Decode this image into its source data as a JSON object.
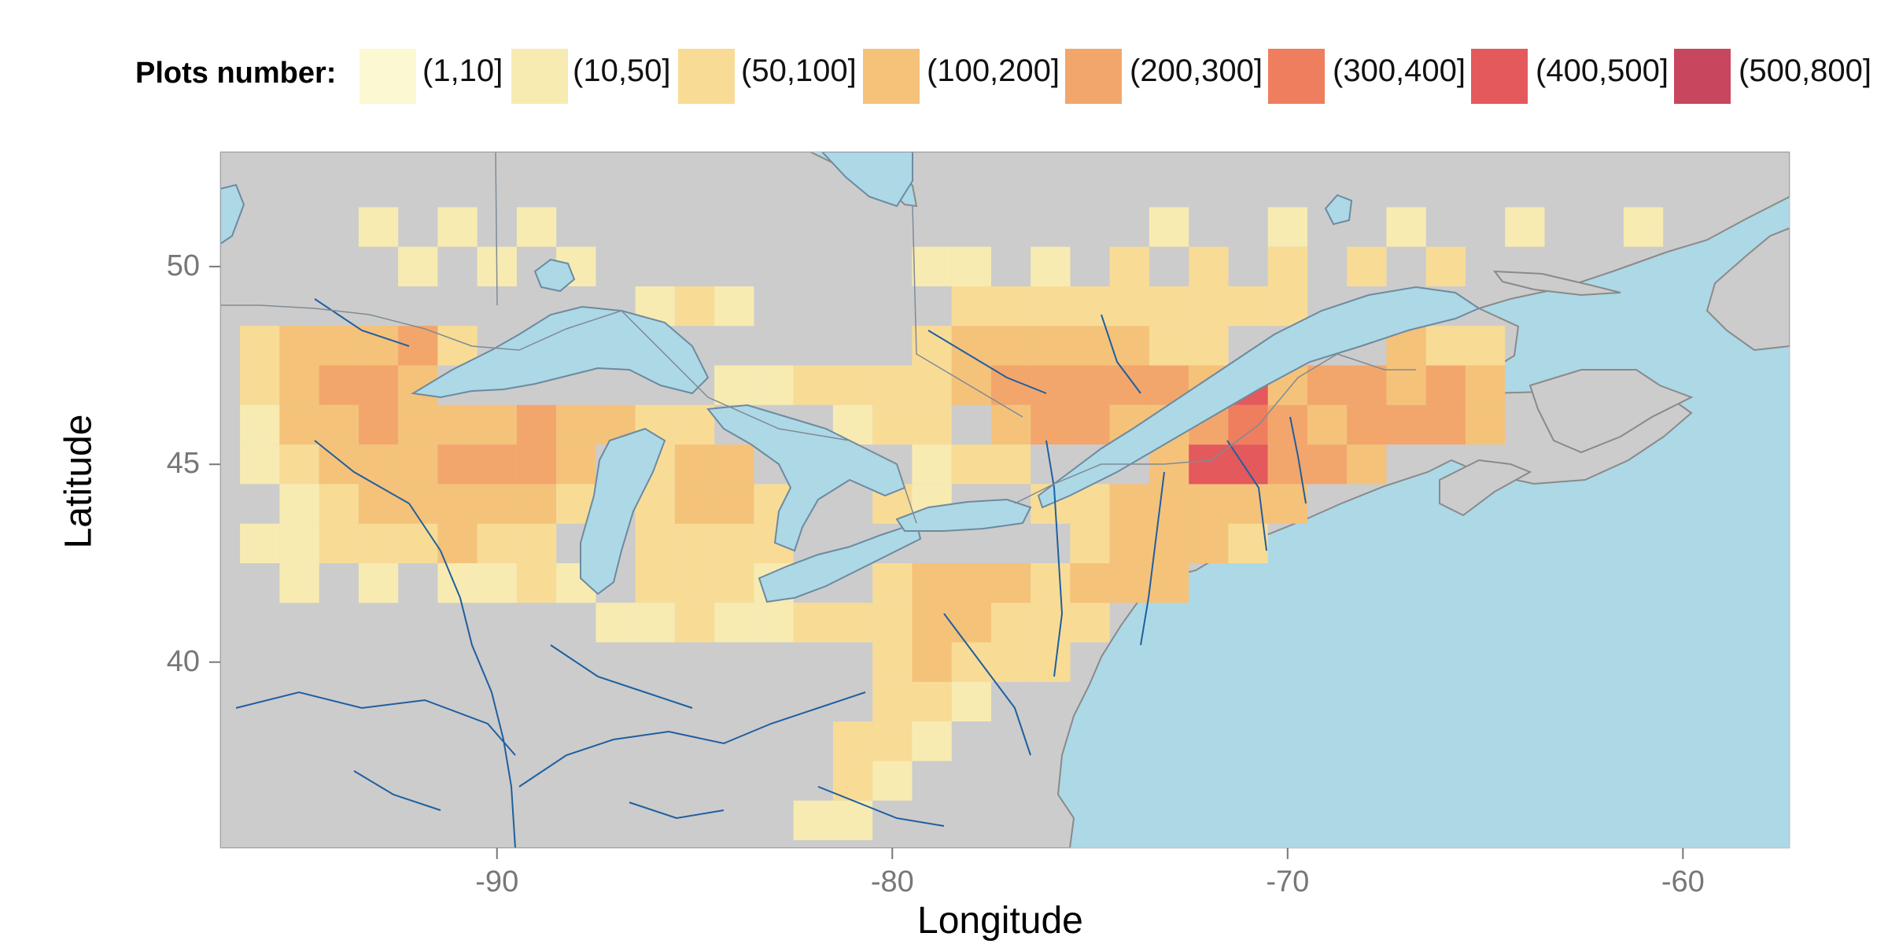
{
  "legend": {
    "title": "Plots number:",
    "items": [
      {
        "label": "(1,10]",
        "color": "#fbf8d2"
      },
      {
        "label": "(10,50]",
        "color": "#f7ebb2"
      },
      {
        "label": "(50,100]",
        "color": "#f8dc96"
      },
      {
        "label": "(100,200]",
        "color": "#f5c27a"
      },
      {
        "label": "(200,300]",
        "color": "#f3a66b"
      },
      {
        "label": "(300,400]",
        "color": "#ef7e5e"
      },
      {
        "label": "(400,500]",
        "color": "#e3595c"
      },
      {
        "label": "(500,800]",
        "color": "#c8475e"
      }
    ]
  },
  "axes": {
    "xlabel": "Longitude",
    "ylabel": "Latitude",
    "xticks": [
      "-90",
      "-80",
      "-70",
      "-60"
    ],
    "yticks": [
      "50",
      "45",
      "40"
    ],
    "xlim": [
      -97,
      -57.3
    ],
    "ylim": [
      35.3,
      52.9
    ]
  },
  "colors": {
    "land": "#cccccc",
    "water": "#add8e6",
    "rivers": "#1f5fa0",
    "coast": "#8a8a8a"
  },
  "chart_data": {
    "type": "heatmap",
    "xlabel": "Longitude",
    "ylabel": "Latitude",
    "xlim": [
      -97,
      -57.3
    ],
    "ylim": [
      35.3,
      52.9
    ],
    "cell_size_deg": 1,
    "value_classes": [
      "(1,10]",
      "(10,50]",
      "(50,100]",
      "(100,200]",
      "(200,300]",
      "(300,400]",
      "(400,500]",
      "(500,800]"
    ],
    "cells": [
      {
        "lon": -96,
        "lat": 48,
        "class": 2
      },
      {
        "lon": -95,
        "lat": 48,
        "class": 3
      },
      {
        "lon": -94,
        "lat": 48,
        "class": 3
      },
      {
        "lon": -93,
        "lat": 48,
        "class": 3
      },
      {
        "lon": -92,
        "lat": 48,
        "class": 4
      },
      {
        "lon": -91,
        "lat": 48,
        "class": 2
      },
      {
        "lon": -96,
        "lat": 47,
        "class": 2
      },
      {
        "lon": -95,
        "lat": 47,
        "class": 3
      },
      {
        "lon": -94,
        "lat": 47,
        "class": 4
      },
      {
        "lon": -93,
        "lat": 47,
        "class": 4
      },
      {
        "lon": -92,
        "lat": 47,
        "class": 3
      },
      {
        "lon": -96,
        "lat": 46,
        "class": 1
      },
      {
        "lon": -95,
        "lat": 46,
        "class": 3
      },
      {
        "lon": -94,
        "lat": 46,
        "class": 3
      },
      {
        "lon": -93,
        "lat": 46,
        "class": 4
      },
      {
        "lon": -92,
        "lat": 46,
        "class": 3
      },
      {
        "lon": -91,
        "lat": 46,
        "class": 3
      },
      {
        "lon": -90,
        "lat": 46,
        "class": 3
      },
      {
        "lon": -89,
        "lat": 46,
        "class": 4
      },
      {
        "lon": -88,
        "lat": 46,
        "class": 3
      },
      {
        "lon": -87,
        "lat": 46,
        "class": 3
      },
      {
        "lon": -86,
        "lat": 46,
        "class": 2
      },
      {
        "lon": -85,
        "lat": 46,
        "class": 2
      },
      {
        "lon": -96,
        "lat": 45,
        "class": 1
      },
      {
        "lon": -95,
        "lat": 45,
        "class": 2
      },
      {
        "lon": -94,
        "lat": 45,
        "class": 3
      },
      {
        "lon": -93,
        "lat": 45,
        "class": 3
      },
      {
        "lon": -92,
        "lat": 45,
        "class": 3
      },
      {
        "lon": -91,
        "lat": 45,
        "class": 4
      },
      {
        "lon": -90,
        "lat": 45,
        "class": 4
      },
      {
        "lon": -89,
        "lat": 45,
        "class": 4
      },
      {
        "lon": -88,
        "lat": 45,
        "class": 3
      },
      {
        "lon": -95,
        "lat": 44,
        "class": 1
      },
      {
        "lon": -94,
        "lat": 44,
        "class": 2
      },
      {
        "lon": -93,
        "lat": 44,
        "class": 3
      },
      {
        "lon": -92,
        "lat": 44,
        "class": 3
      },
      {
        "lon": -91,
        "lat": 44,
        "class": 3
      },
      {
        "lon": -90,
        "lat": 44,
        "class": 3
      },
      {
        "lon": -89,
        "lat": 44,
        "class": 3
      },
      {
        "lon": -88,
        "lat": 44,
        "class": 2
      },
      {
        "lon": -96,
        "lat": 43,
        "class": 1
      },
      {
        "lon": -95,
        "lat": 43,
        "class": 1
      },
      {
        "lon": -94,
        "lat": 43,
        "class": 2
      },
      {
        "lon": -93,
        "lat": 43,
        "class": 2
      },
      {
        "lon": -92,
        "lat": 43,
        "class": 2
      },
      {
        "lon": -91,
        "lat": 43,
        "class": 3
      },
      {
        "lon": -90,
        "lat": 43,
        "class": 2
      },
      {
        "lon": -89,
        "lat": 43,
        "class": 2
      },
      {
        "lon": -95,
        "lat": 42,
        "class": 1
      },
      {
        "lon": -93,
        "lat": 42,
        "class": 1
      },
      {
        "lon": -91,
        "lat": 42,
        "class": 1
      },
      {
        "lon": -90,
        "lat": 42,
        "class": 1
      },
      {
        "lon": -89,
        "lat": 42,
        "class": 2
      },
      {
        "lon": -88,
        "lat": 42,
        "class": 1
      },
      {
        "lon": -86,
        "lat": 45,
        "class": 2
      },
      {
        "lon": -85,
        "lat": 45,
        "class": 3
      },
      {
        "lon": -84,
        "lat": 45,
        "class": 3
      },
      {
        "lon": -86,
        "lat": 44,
        "class": 2
      },
      {
        "lon": -85,
        "lat": 44,
        "class": 3
      },
      {
        "lon": -84,
        "lat": 44,
        "class": 3
      },
      {
        "lon": -83,
        "lat": 44,
        "class": 2
      },
      {
        "lon": -86,
        "lat": 43,
        "class": 2
      },
      {
        "lon": -85,
        "lat": 43,
        "class": 2
      },
      {
        "lon": -84,
        "lat": 43,
        "class": 2
      },
      {
        "lon": -83,
        "lat": 43,
        "class": 2
      },
      {
        "lon": -86,
        "lat": 42,
        "class": 2
      },
      {
        "lon": -85,
        "lat": 42,
        "class": 2
      },
      {
        "lon": -84,
        "lat": 42,
        "class": 2
      },
      {
        "lon": -83,
        "lat": 42,
        "class": 1
      },
      {
        "lon": -87,
        "lat": 41,
        "class": 1
      },
      {
        "lon": -86,
        "lat": 41,
        "class": 1
      },
      {
        "lon": -85,
        "lat": 41,
        "class": 2
      },
      {
        "lon": -84,
        "lat": 41,
        "class": 1
      },
      {
        "lon": -83,
        "lat": 41,
        "class": 1
      },
      {
        "lon": -82,
        "lat": 41,
        "class": 2
      },
      {
        "lon": -81,
        "lat": 41,
        "class": 2
      },
      {
        "lon": -80,
        "lat": 41,
        "class": 2
      },
      {
        "lon": -79,
        "lat": 41,
        "class": 3
      },
      {
        "lon": -78,
        "lat": 41,
        "class": 3
      },
      {
        "lon": -77,
        "lat": 41,
        "class": 2
      },
      {
        "lon": -76,
        "lat": 41,
        "class": 2
      },
      {
        "lon": -75,
        "lat": 41,
        "class": 2
      },
      {
        "lon": -80,
        "lat": 42,
        "class": 2
      },
      {
        "lon": -79,
        "lat": 42,
        "class": 3
      },
      {
        "lon": -78,
        "lat": 42,
        "class": 3
      },
      {
        "lon": -77,
        "lat": 42,
        "class": 3
      },
      {
        "lon": -76,
        "lat": 42,
        "class": 2
      },
      {
        "lon": -75,
        "lat": 42,
        "class": 3
      },
      {
        "lon": -74,
        "lat": 42,
        "class": 3
      },
      {
        "lon": -73,
        "lat": 42,
        "class": 3
      },
      {
        "lon": -80,
        "lat": 40,
        "class": 2
      },
      {
        "lon": -79,
        "lat": 40,
        "class": 3
      },
      {
        "lon": -78,
        "lat": 40,
        "class": 2
      },
      {
        "lon": -77,
        "lat": 40,
        "class": 2
      },
      {
        "lon": -76,
        "lat": 40,
        "class": 2
      },
      {
        "lon": -80,
        "lat": 39,
        "class": 2
      },
      {
        "lon": -79,
        "lat": 39,
        "class": 2
      },
      {
        "lon": -78,
        "lat": 39,
        "class": 1
      },
      {
        "lon": -81,
        "lat": 38,
        "class": 2
      },
      {
        "lon": -80,
        "lat": 38,
        "class": 2
      },
      {
        "lon": -79,
        "lat": 38,
        "class": 1
      },
      {
        "lon": -81,
        "lat": 37,
        "class": 2
      },
      {
        "lon": -80,
        "lat": 37,
        "class": 1
      },
      {
        "lon": -82,
        "lat": 36,
        "class": 1
      },
      {
        "lon": -81,
        "lat": 36,
        "class": 1
      },
      {
        "lon": -76,
        "lat": 44,
        "class": 2
      },
      {
        "lon": -75,
        "lat": 44,
        "class": 2
      },
      {
        "lon": -74,
        "lat": 44,
        "class": 3
      },
      {
        "lon": -73,
        "lat": 44,
        "class": 3
      },
      {
        "lon": -72,
        "lat": 44,
        "class": 3
      },
      {
        "lon": -71,
        "lat": 44,
        "class": 3
      },
      {
        "lon": -70,
        "lat": 44,
        "class": 3
      },
      {
        "lon": -75,
        "lat": 43,
        "class": 2
      },
      {
        "lon": -74,
        "lat": 43,
        "class": 3
      },
      {
        "lon": -73,
        "lat": 43,
        "class": 3
      },
      {
        "lon": -72,
        "lat": 43,
        "class": 3
      },
      {
        "lon": -71,
        "lat": 43,
        "class": 2
      },
      {
        "lon": -73,
        "lat": 45,
        "class": 3
      },
      {
        "lon": -72,
        "lat": 45,
        "class": 6
      },
      {
        "lon": -71,
        "lat": 45,
        "class": 6
      },
      {
        "lon": -70,
        "lat": 45,
        "class": 4
      },
      {
        "lon": -69,
        "lat": 45,
        "class": 4
      },
      {
        "lon": -68,
        "lat": 45,
        "class": 3
      },
      {
        "lon": -72,
        "lat": 46,
        "class": 4
      },
      {
        "lon": -71,
        "lat": 46,
        "class": 5
      },
      {
        "lon": -70,
        "lat": 46,
        "class": 4
      },
      {
        "lon": -69,
        "lat": 46,
        "class": 3
      },
      {
        "lon": -68,
        "lat": 46,
        "class": 4
      },
      {
        "lon": -67,
        "lat": 46,
        "class": 4
      },
      {
        "lon": -66,
        "lat": 46,
        "class": 4
      },
      {
        "lon": -65,
        "lat": 46,
        "class": 3
      },
      {
        "lon": -70,
        "lat": 47,
        "class": 3
      },
      {
        "lon": -69,
        "lat": 47,
        "class": 4
      },
      {
        "lon": -68,
        "lat": 47,
        "class": 4
      },
      {
        "lon": -67,
        "lat": 47,
        "class": 3
      },
      {
        "lon": -66,
        "lat": 47,
        "class": 4
      },
      {
        "lon": -65,
        "lat": 47,
        "class": 3
      },
      {
        "lon": -67,
        "lat": 48,
        "class": 3
      },
      {
        "lon": -66,
        "lat": 48,
        "class": 2
      },
      {
        "lon": -65,
        "lat": 48,
        "class": 2
      },
      {
        "lon": -71,
        "lat": 47,
        "class": 6
      },
      {
        "lon": -79,
        "lat": 48,
        "class": 2
      },
      {
        "lon": -78,
        "lat": 48,
        "class": 3
      },
      {
        "lon": -77,
        "lat": 48,
        "class": 3
      },
      {
        "lon": -76,
        "lat": 48,
        "class": 3
      },
      {
        "lon": -75,
        "lat": 48,
        "class": 3
      },
      {
        "lon": -74,
        "lat": 48,
        "class": 3
      },
      {
        "lon": -73,
        "lat": 48,
        "class": 2
      },
      {
        "lon": -72,
        "lat": 48,
        "class": 2
      },
      {
        "lon": -79,
        "lat": 47,
        "class": 2
      },
      {
        "lon": -78,
        "lat": 47,
        "class": 3
      },
      {
        "lon": -77,
        "lat": 47,
        "class": 4
      },
      {
        "lon": -76,
        "lat": 47,
        "class": 4
      },
      {
        "lon": -75,
        "lat": 47,
        "class": 4
      },
      {
        "lon": -74,
        "lat": 47,
        "class": 4
      },
      {
        "lon": -73,
        "lat": 47,
        "class": 4
      },
      {
        "lon": -72,
        "lat": 47,
        "class": 3
      },
      {
        "lon": -77,
        "lat": 46,
        "class": 3
      },
      {
        "lon": -76,
        "lat": 46,
        "class": 4
      },
      {
        "lon": -75,
        "lat": 46,
        "class": 4
      },
      {
        "lon": -74,
        "lat": 46,
        "class": 3
      },
      {
        "lon": -73,
        "lat": 46,
        "class": 3
      },
      {
        "lon": -78,
        "lat": 49,
        "class": 2
      },
      {
        "lon": -77,
        "lat": 49,
        "class": 2
      },
      {
        "lon": -76,
        "lat": 49,
        "class": 2
      },
      {
        "lon": -75,
        "lat": 49,
        "class": 2
      },
      {
        "lon": -74,
        "lat": 49,
        "class": 2
      },
      {
        "lon": -73,
        "lat": 49,
        "class": 2
      },
      {
        "lon": -72,
        "lat": 49,
        "class": 2
      },
      {
        "lon": -71,
        "lat": 49,
        "class": 2
      },
      {
        "lon": -70,
        "lat": 49,
        "class": 2
      },
      {
        "lon": -79,
        "lat": 50,
        "class": 1
      },
      {
        "lon": -78,
        "lat": 50,
        "class": 1
      },
      {
        "lon": -76,
        "lat": 50,
        "class": 1
      },
      {
        "lon": -74,
        "lat": 50,
        "class": 2
      },
      {
        "lon": -72,
        "lat": 50,
        "class": 2
      },
      {
        "lon": -70,
        "lat": 50,
        "class": 2
      },
      {
        "lon": -68,
        "lat": 50,
        "class": 2
      },
      {
        "lon": -66,
        "lat": 50,
        "class": 2
      },
      {
        "lon": -73,
        "lat": 51,
        "class": 1
      },
      {
        "lon": -70,
        "lat": 51,
        "class": 1
      },
      {
        "lon": -67,
        "lat": 51,
        "class": 1
      },
      {
        "lon": -64,
        "lat": 51,
        "class": 1
      },
      {
        "lon": -61,
        "lat": 51,
        "class": 1
      },
      {
        "lon": -93,
        "lat": 51,
        "class": 1
      },
      {
        "lon": -91,
        "lat": 51,
        "class": 1
      },
      {
        "lon": -89,
        "lat": 51,
        "class": 1
      },
      {
        "lon": -92,
        "lat": 50,
        "class": 1
      },
      {
        "lon": -90,
        "lat": 50,
        "class": 1
      },
      {
        "lon": -88,
        "lat": 50,
        "class": 1
      },
      {
        "lon": -86,
        "lat": 49,
        "class": 1
      },
      {
        "lon": -85,
        "lat": 49,
        "class": 2
      },
      {
        "lon": -84,
        "lat": 49,
        "class": 1
      },
      {
        "lon": -84,
        "lat": 47,
        "class": 1
      },
      {
        "lon": -83,
        "lat": 47,
        "class": 1
      },
      {
        "lon": -82,
        "lat": 47,
        "class": 2
      },
      {
        "lon": -81,
        "lat": 47,
        "class": 2
      },
      {
        "lon": -80,
        "lat": 47,
        "class": 2
      },
      {
        "lon": -81,
        "lat": 46,
        "class": 1
      },
      {
        "lon": -80,
        "lat": 46,
        "class": 2
      },
      {
        "lon": -79,
        "lat": 46,
        "class": 2
      },
      {
        "lon": -79,
        "lat": 45,
        "class": 1
      },
      {
        "lon": -78,
        "lat": 45,
        "class": 2
      },
      {
        "lon": -77,
        "lat": 45,
        "class": 2
      },
      {
        "lon": -80,
        "lat": 44,
        "class": 2
      },
      {
        "lon": -79,
        "lat": 44,
        "class": 1
      }
    ]
  }
}
